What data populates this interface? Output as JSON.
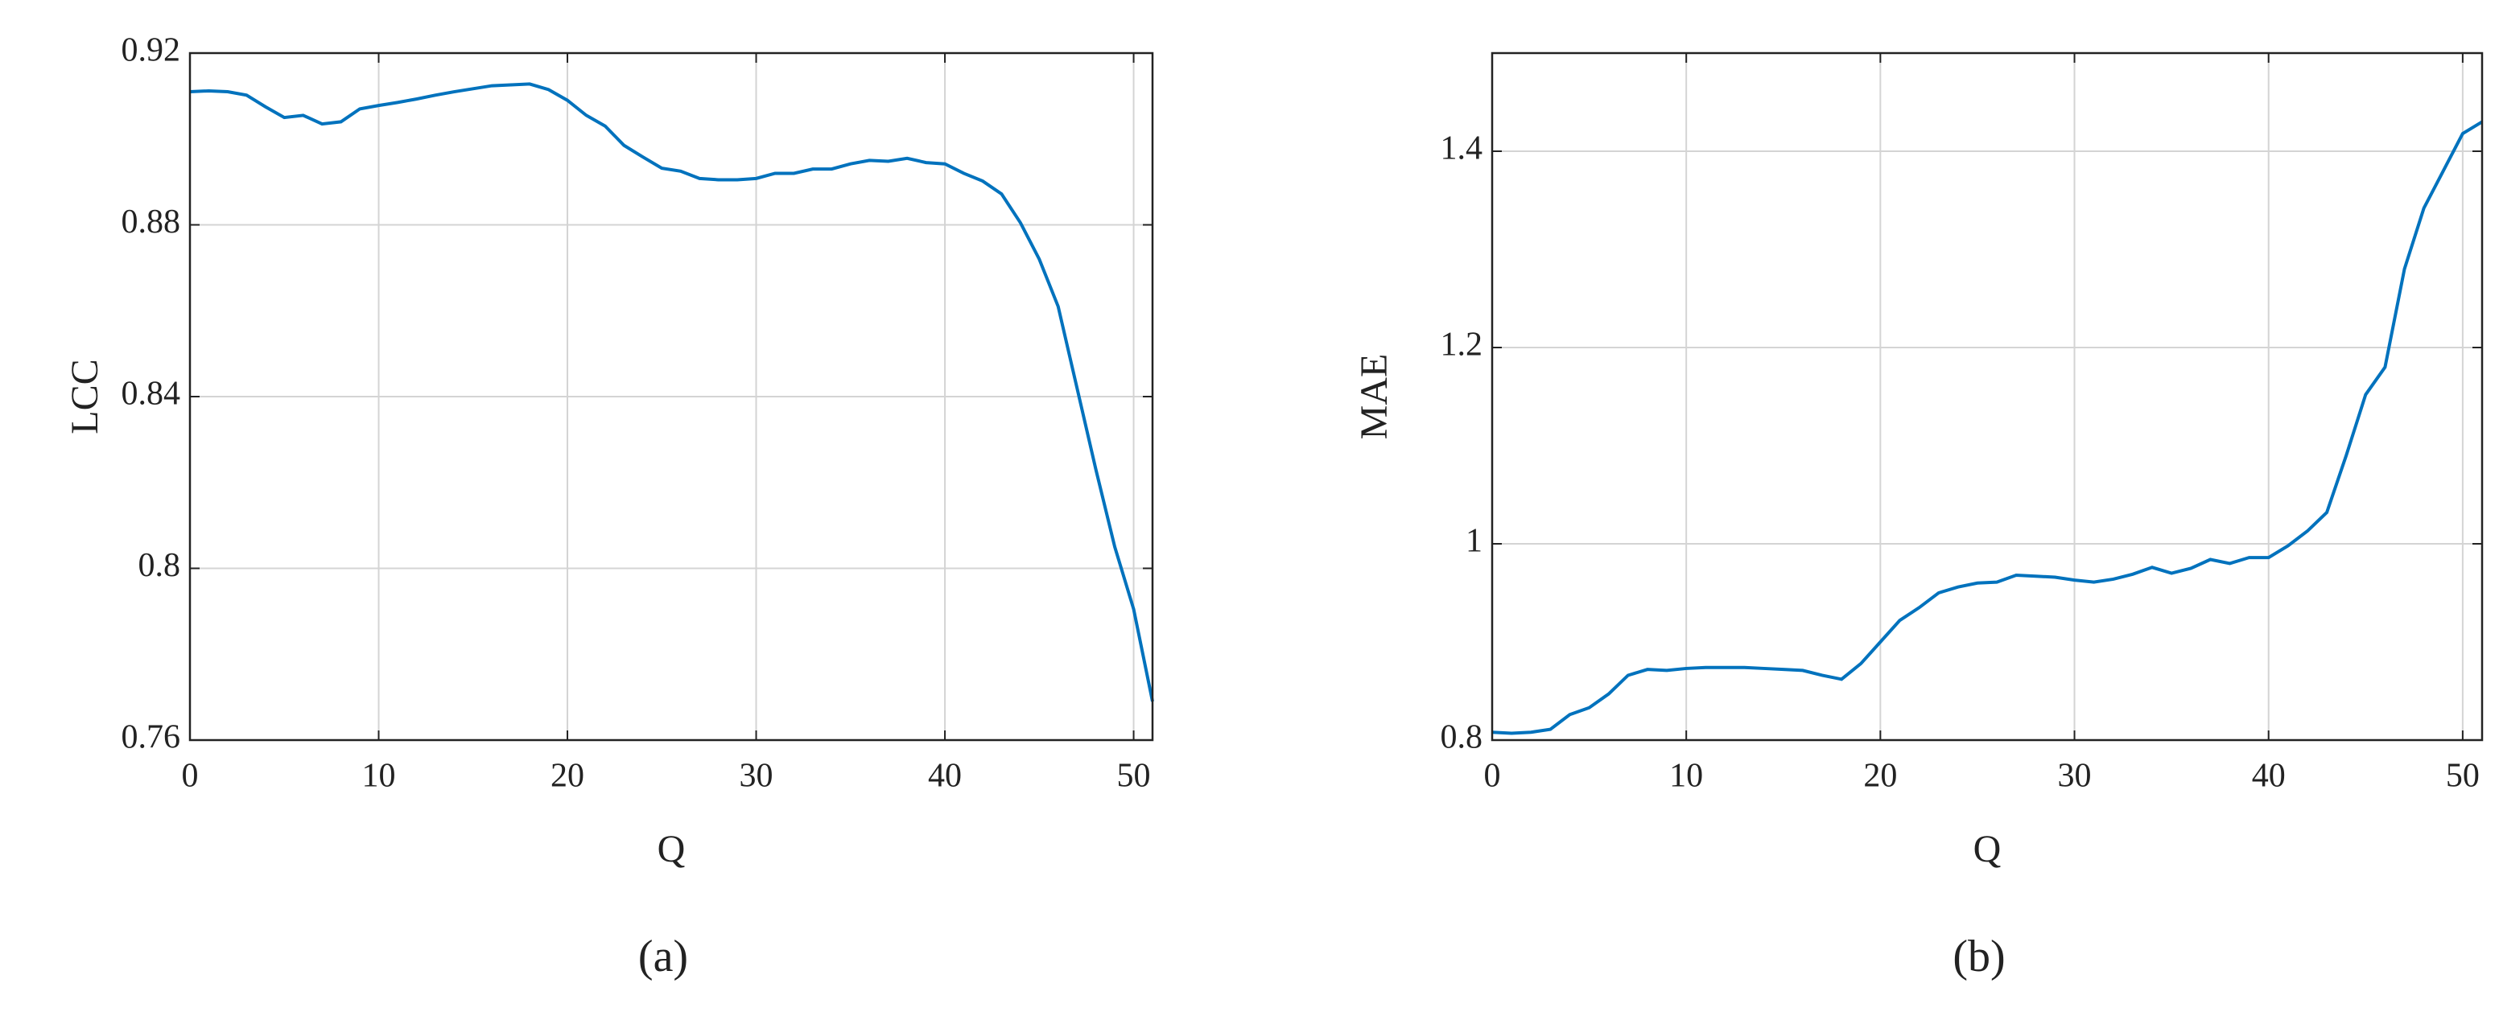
{
  "chart_data": [
    {
      "type": "line",
      "xlabel": "Q",
      "ylabel": "LCC",
      "caption": "(a)",
      "color": "#0072bd",
      "grid": true,
      "x": [
        0,
        1,
        2,
        3,
        4,
        5,
        6,
        7,
        8,
        9,
        10,
        11,
        12,
        13,
        14,
        15,
        16,
        17,
        18,
        19,
        20,
        21,
        22,
        23,
        24,
        25,
        26,
        27,
        28,
        29,
        30,
        31,
        32,
        33,
        34,
        35,
        36,
        37,
        38,
        39,
        40,
        41,
        42,
        43,
        44,
        45,
        46,
        47,
        48,
        49,
        50,
        51
      ],
      "values": [
        0.911,
        0.9112,
        0.911,
        0.9102,
        0.9075,
        0.905,
        0.9055,
        0.9035,
        0.904,
        0.907,
        0.9078,
        0.9085,
        0.9093,
        0.9102,
        0.911,
        0.9117,
        0.9124,
        0.9126,
        0.9128,
        0.9115,
        0.909,
        0.9055,
        0.903,
        0.8985,
        0.8958,
        0.8932,
        0.8925,
        0.8908,
        0.8905,
        0.8905,
        0.8908,
        0.892,
        0.892,
        0.893,
        0.893,
        0.8942,
        0.895,
        0.8948,
        0.8955,
        0.8945,
        0.8942,
        0.892,
        0.8902,
        0.8872,
        0.8805,
        0.872,
        0.861,
        0.842,
        0.823,
        0.805,
        0.7905,
        0.769
      ],
      "xlim": [
        0,
        51
      ],
      "xticks": [
        0,
        10,
        20,
        30,
        40,
        50
      ],
      "ylim": [
        0.76,
        0.92
      ],
      "yticks": [
        0.76,
        0.8,
        0.84,
        0.88,
        0.92
      ]
    },
    {
      "type": "line",
      "xlabel": "Q",
      "ylabel": "MAE",
      "caption": "(b)",
      "color": "#0072bd",
      "grid": true,
      "x": [
        0,
        1,
        2,
        3,
        4,
        5,
        6,
        7,
        8,
        9,
        10,
        11,
        12,
        13,
        14,
        15,
        16,
        17,
        18,
        19,
        20,
        21,
        22,
        23,
        24,
        25,
        26,
        27,
        28,
        29,
        30,
        31,
        32,
        33,
        34,
        35,
        36,
        37,
        38,
        39,
        40,
        41,
        42,
        43,
        44,
        45,
        46,
        47,
        48,
        49,
        50,
        51
      ],
      "values": [
        0.808,
        0.807,
        0.808,
        0.811,
        0.826,
        0.833,
        0.847,
        0.866,
        0.872,
        0.871,
        0.873,
        0.874,
        0.874,
        0.874,
        0.873,
        0.872,
        0.871,
        0.866,
        0.862,
        0.878,
        0.9,
        0.922,
        0.935,
        0.95,
        0.956,
        0.96,
        0.961,
        0.968,
        0.967,
        0.966,
        0.963,
        0.961,
        0.964,
        0.969,
        0.976,
        0.97,
        0.975,
        0.984,
        0.98,
        0.986,
        0.986,
        0.998,
        1.013,
        1.032,
        1.09,
        1.152,
        1.18,
        1.28,
        1.342,
        1.38,
        1.418,
        1.43
      ],
      "xlim": [
        0,
        51
      ],
      "xticks": [
        0,
        10,
        20,
        30,
        40,
        50
      ],
      "ylim": [
        0.8,
        1.5
      ],
      "yticks": [
        0.8,
        1,
        1.2,
        1.4
      ]
    }
  ]
}
